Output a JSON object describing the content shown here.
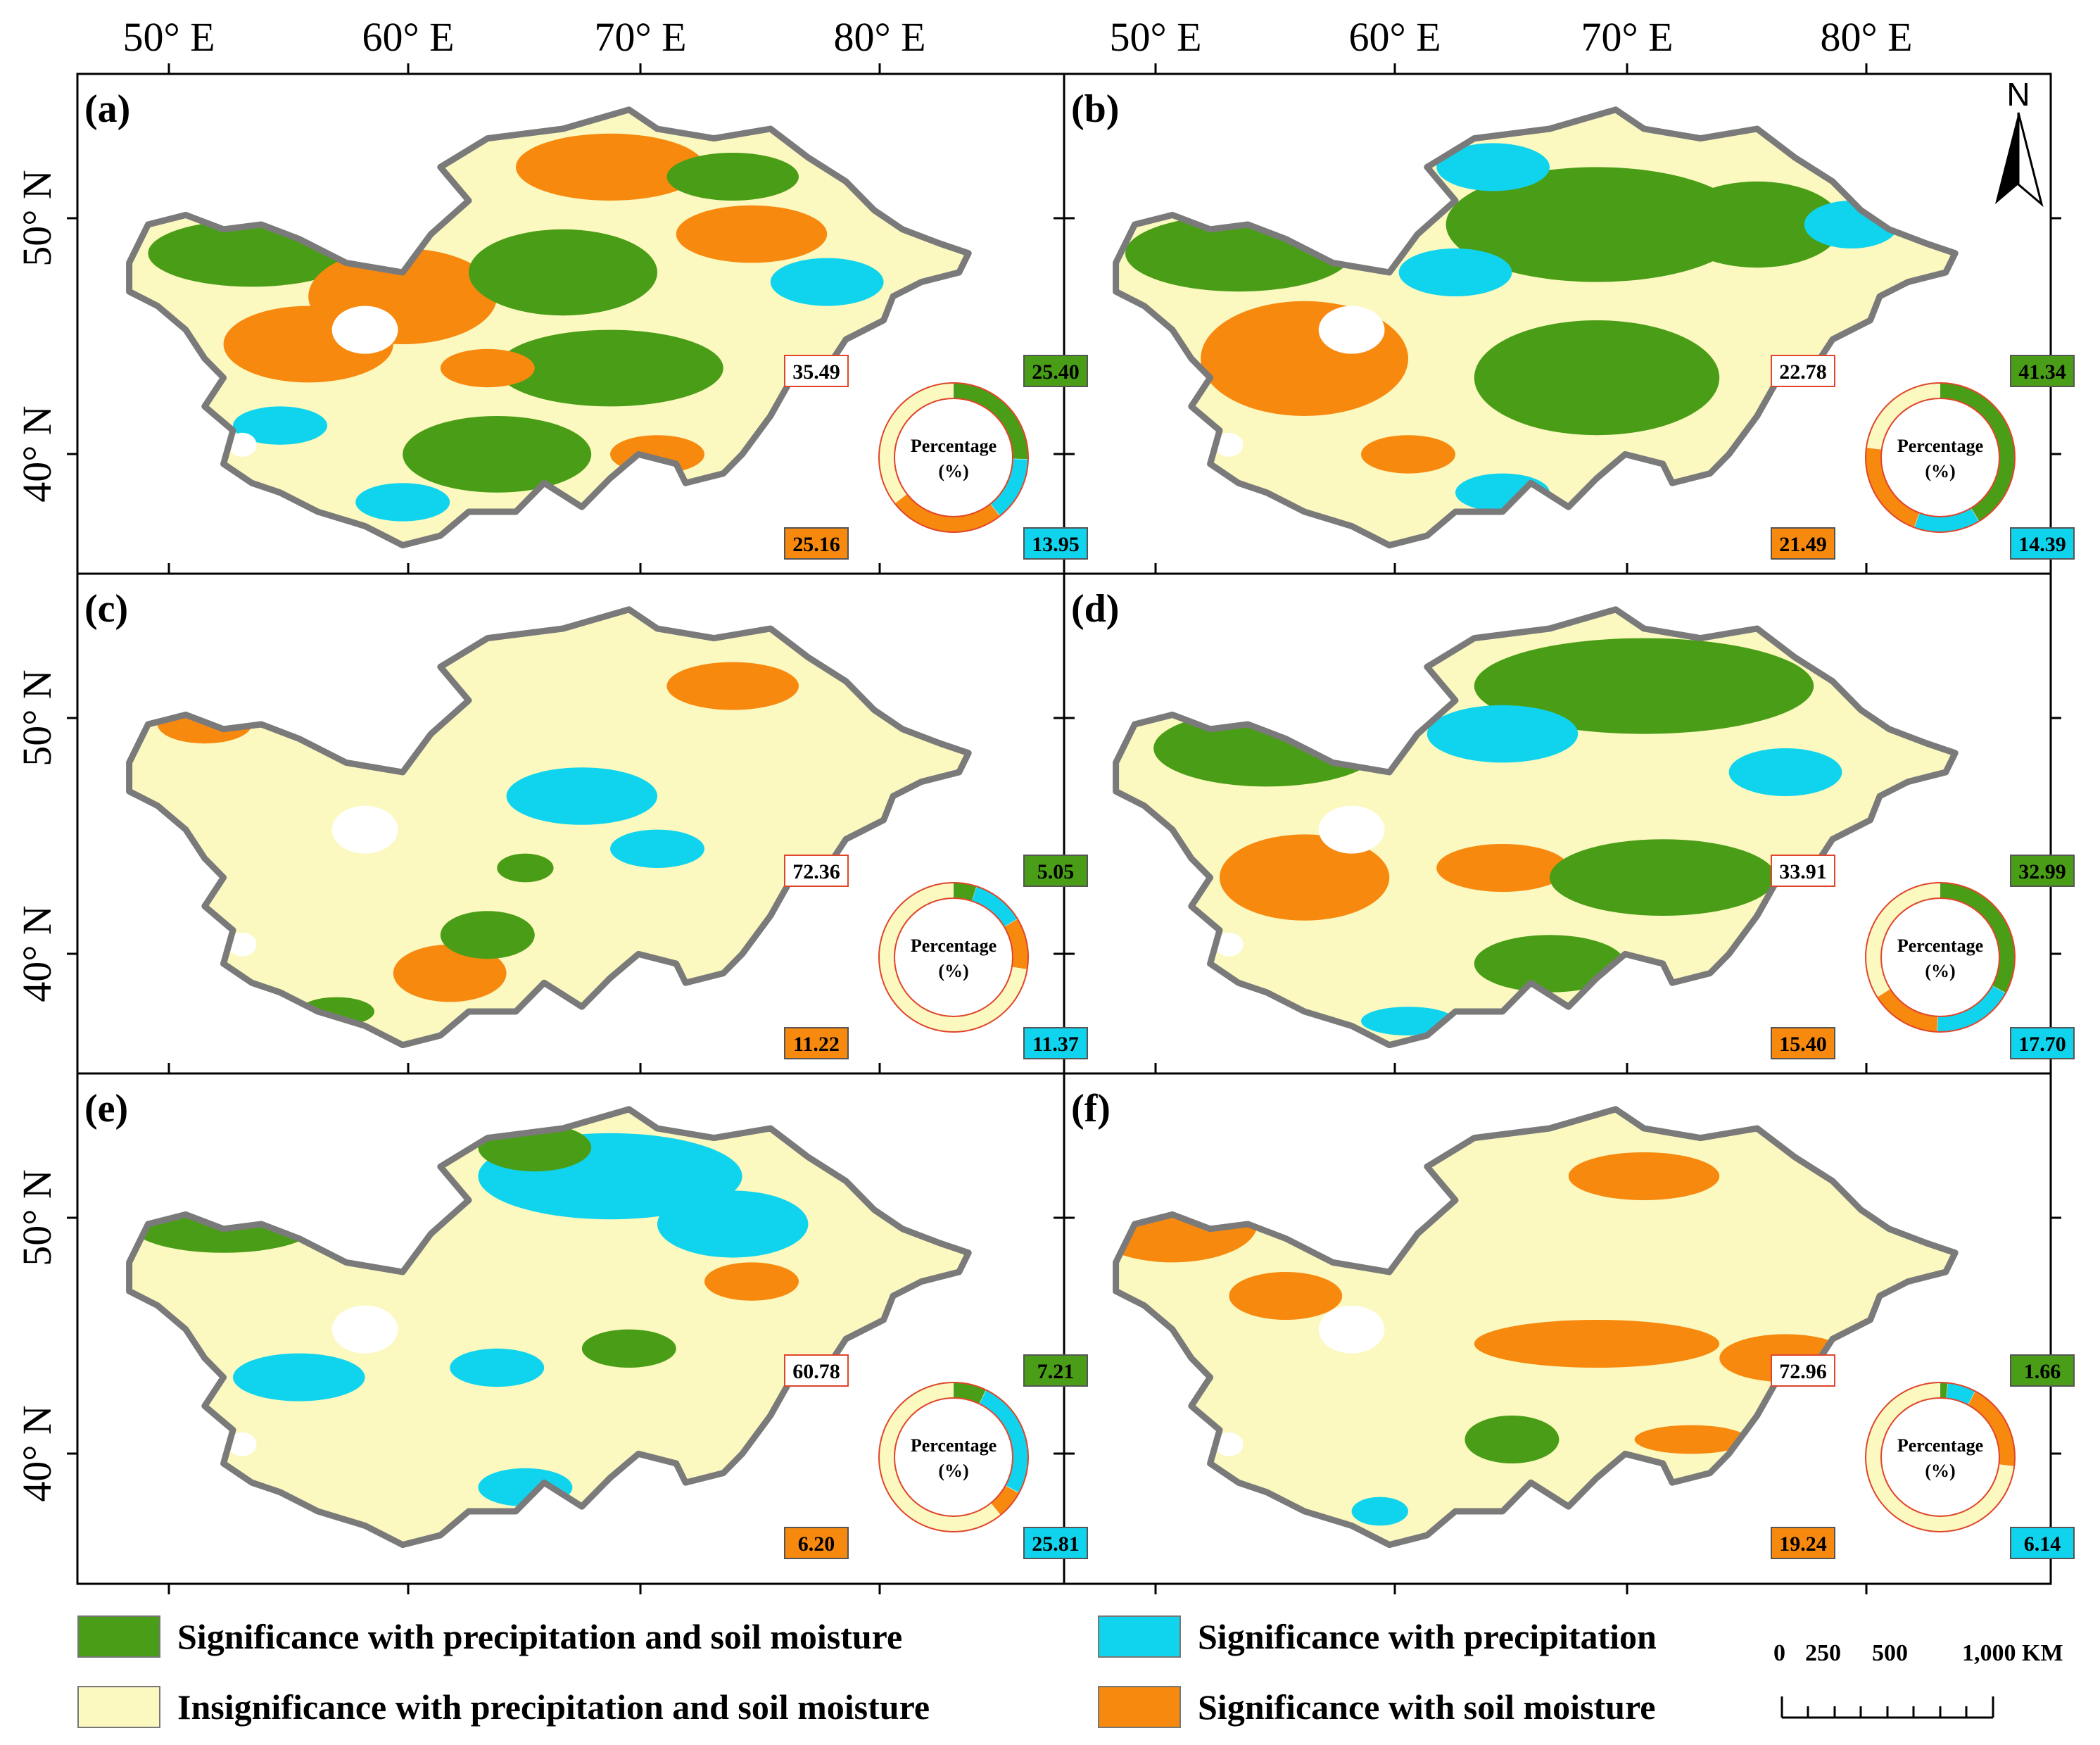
{
  "axes": {
    "top_labels": [
      "50° E",
      "60° E",
      "70° E",
      "80° E"
    ],
    "left_labels": [
      "50° N",
      "40° N"
    ]
  },
  "north_arrow": {
    "label": "N",
    "icon": "north-arrow-icon"
  },
  "colors": {
    "both": "#4a9e17",
    "precip": "#10d4ee",
    "insig": "#fbf8c0",
    "soil": "#f7890f",
    "border": "#7a7a7a"
  },
  "donut_title": "Percentage",
  "donut_unit": "(%)",
  "panels": [
    {
      "label": "(a)",
      "both": "25.40",
      "precip": "13.95",
      "soil": "25.16",
      "insig": "35.49"
    },
    {
      "label": "(b)",
      "both": "41.34",
      "precip": "14.39",
      "soil": "21.49",
      "insig": "22.78"
    },
    {
      "label": "(c)",
      "both": "5.05",
      "precip": "11.37",
      "soil": "11.22",
      "insig": "72.36"
    },
    {
      "label": "(d)",
      "both": "32.99",
      "precip": "17.70",
      "soil": "15.40",
      "insig": "33.91"
    },
    {
      "label": "(e)",
      "both": "7.21",
      "precip": "25.81",
      "soil": "6.20",
      "insig": "60.78"
    },
    {
      "label": "(f)",
      "both": "1.66",
      "precip": "6.14",
      "soil": "19.24",
      "insig": "72.96"
    }
  ],
  "legend": {
    "both": "Significance with precipitation and soil moisture",
    "precip": "Significance with precipitation",
    "insig": "Insignificance with precipitation and soil moisture",
    "soil": "Significance with soil moisture"
  },
  "scale": {
    "labels": [
      "0",
      "250",
      "500",
      "1,000 KM"
    ]
  }
}
